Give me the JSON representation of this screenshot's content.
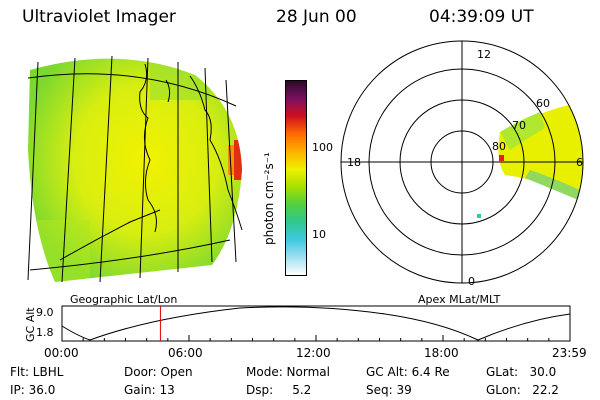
{
  "header": {
    "title": "Ultraviolet Imager",
    "date": "28 Jun 00",
    "time": "04:39:09 UT"
  },
  "colorbar": {
    "unit_label": "photon cm⁻²s⁻¹",
    "ticks": [
      "100",
      "10"
    ],
    "colors": [
      "#2a0a2a",
      "#7a1060",
      "#d01020",
      "#ff6a00",
      "#ffb000",
      "#f0f000",
      "#a8e000",
      "#50d040",
      "#30c890",
      "#40c8e0",
      "#a0e0f0",
      "#ffffff"
    ]
  },
  "left_panel": {
    "label": "Geographic Lat/Lon"
  },
  "right_panel": {
    "label": "Apex MLat/MLT",
    "mlt_labels": {
      "top": "12",
      "left": "18",
      "right": "6",
      "bottom": "0"
    },
    "lat_labels": [
      "60",
      "70",
      "80"
    ]
  },
  "altitude_plot": {
    "y_axis_label": "GC Alt",
    "y_ticks": [
      "9.0",
      "1.8"
    ],
    "x_ticks": [
      "00:00",
      "06:00",
      "12:00",
      "18:00",
      "23:59"
    ],
    "current_time_hours": 4.65,
    "marker_color": "#e00000"
  },
  "info": {
    "flt": "Flt: LBHL",
    "door": "Door: Open",
    "mode": "Mode: Normal",
    "gc_alt": "GC Alt: 6.4 Re",
    "glat": "GLat:   30.0",
    "ip": "IP: 36.0",
    "gain": "Gain: 13",
    "dsp": "Dsp:     5.2",
    "seq": "Seq: 39",
    "glon": "GLon:   22.2"
  }
}
